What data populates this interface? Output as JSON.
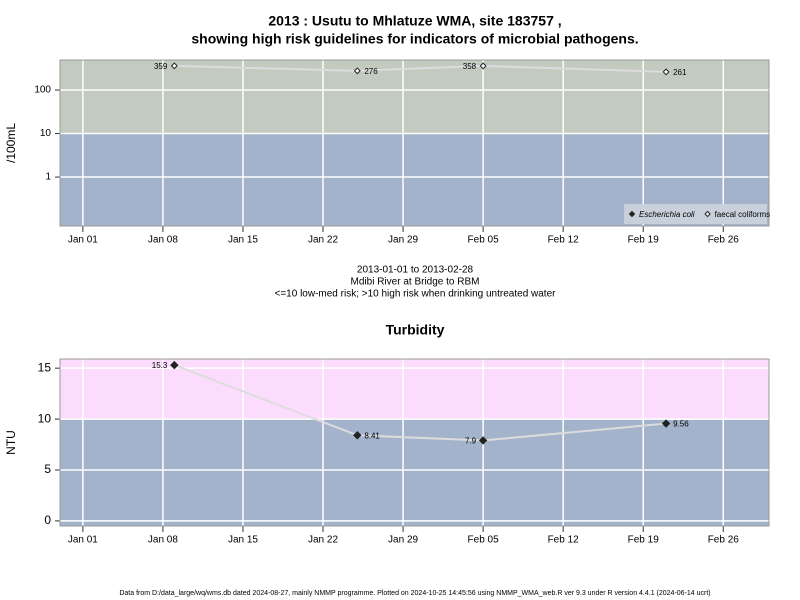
{
  "chart_data": [
    {
      "type": "line",
      "title": "2013 : Usutu to Mhlatuze WMA, site 183757 ,",
      "subtitle": "showing high risk guidelines for indicators of microbial pathogens.",
      "ylabel": "/100mL",
      "x": [
        "2013-01-09",
        "2013-01-25",
        "2013-02-05",
        "2013-02-21"
      ],
      "series": [
        {
          "name": "Escherichia coli",
          "marker": "filled-diamond",
          "font_style": "italic",
          "color": "#222222",
          "values": [
            null,
            null,
            null,
            null
          ]
        },
        {
          "name": "faecal coliforms",
          "marker": "open-diamond",
          "font_style": "normal",
          "color": "#222222",
          "values": [
            359,
            276,
            358,
            261
          ]
        }
      ],
      "line_color": "#dcdcdc",
      "xlim": [
        "2012-12-30",
        "2013-03-02"
      ],
      "xticks": [
        {
          "value": "2013-01-01",
          "label": "Jan 01"
        },
        {
          "value": "2013-01-08",
          "label": "Jan 08"
        },
        {
          "value": "2013-01-15",
          "label": "Jan 15"
        },
        {
          "value": "2013-01-22",
          "label": "Jan 22"
        },
        {
          "value": "2013-01-29",
          "label": "Jan 29"
        },
        {
          "value": "2013-02-05",
          "label": "Feb 05"
        },
        {
          "value": "2013-02-12",
          "label": "Feb 12"
        },
        {
          "value": "2013-02-19",
          "label": "Feb 19"
        },
        {
          "value": "2013-02-26",
          "label": "Feb 26"
        }
      ],
      "ylim": [
        0.075,
        490
      ],
      "yticks": [
        1,
        10,
        100
      ],
      "log_y": true,
      "grid": true,
      "guideline": 10,
      "low_color": "#a3b3cb",
      "high_color": "#c3cbc0",
      "legend": "bottom-right",
      "notes": [
        "2013-01-01 to 2013-02-28",
        "Mdibi River at Bridge to RBM",
        "<=10 low-med risk; >10 high risk when drinking untreated water"
      ]
    },
    {
      "type": "line",
      "title": "Turbidity",
      "ylabel": "NTU",
      "x": [
        "2013-01-09",
        "2013-01-25",
        "2013-02-05",
        "2013-02-21"
      ],
      "series": [
        {
          "marker": "filled-diamond",
          "color": "#222222",
          "values": [
            15.3,
            8.41,
            7.9,
            9.56
          ]
        }
      ],
      "line_color": "#dcdcdc",
      "xlim": [
        "2012-12-30",
        "2013-03-02"
      ],
      "xticks": [
        {
          "value": "2013-01-01",
          "label": "Jan 01"
        },
        {
          "value": "2013-01-08",
          "label": "Jan 08"
        },
        {
          "value": "2013-01-15",
          "label": "Jan 15"
        },
        {
          "value": "2013-01-22",
          "label": "Jan 22"
        },
        {
          "value": "2013-01-29",
          "label": "Jan 29"
        },
        {
          "value": "2013-02-05",
          "label": "Feb 05"
        },
        {
          "value": "2013-02-12",
          "label": "Feb 12"
        },
        {
          "value": "2013-02-19",
          "label": "Feb 19"
        },
        {
          "value": "2013-02-26",
          "label": "Feb 26"
        }
      ],
      "ylim": [
        -0.5,
        15.9
      ],
      "yticks": [
        0,
        5,
        10,
        15
      ],
      "log_y": false,
      "grid": true,
      "guideline": 10,
      "low_color": "#a3b3cb",
      "high_color": "#fcdcfc"
    }
  ],
  "footer": "Data from D:/data_large/wq/wms.db dated 2024-08-27, mainly NMMP programme. Plotted on 2024-10-25 14:45:56 using NMMP_WMA_web.R ver 9.3 under R version 4.4.1 (2024-06-14 ucrt)"
}
